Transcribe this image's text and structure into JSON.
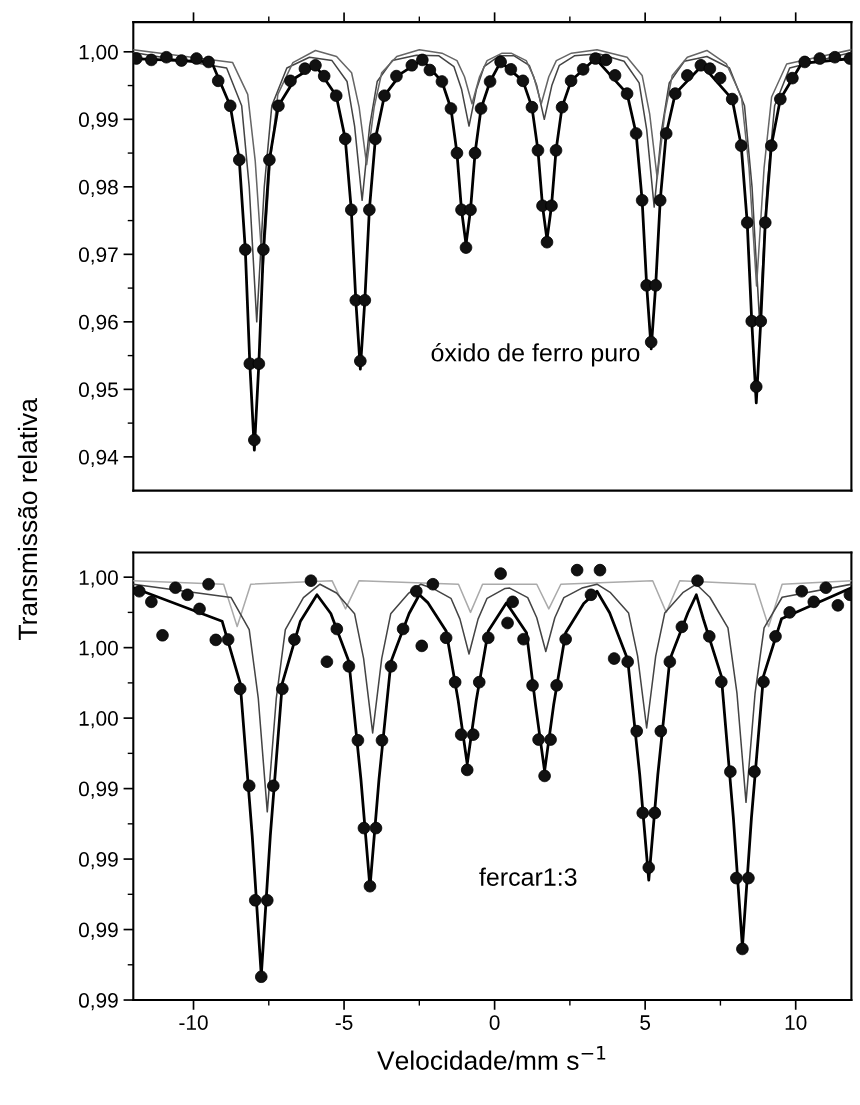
{
  "chart_data": [
    {
      "type": "line",
      "ylabel": "Transmissão relativa",
      "annotations": [
        "óxido de ferro puro"
      ],
      "line_style": "solid",
      "grid": false,
      "legend": false,
      "tick_labels": "y",
      "xlim": [
        -12.0,
        11.85
      ],
      "xticks": [
        -10,
        {
          "value": -7.5,
          "label": null
        },
        -5,
        {
          "value": -2.5,
          "label": null
        },
        0,
        {
          "value": 2.5,
          "label": null
        },
        5,
        {
          "value": 7.5,
          "label": null
        },
        10
      ],
      "ylim": [
        0.935,
        1.0044
      ],
      "yticks": [
        {
          "value": 0.94,
          "label": "0,94"
        },
        {
          "value": 0.945,
          "label": null
        },
        {
          "value": 0.95,
          "label": "0,95"
        },
        {
          "value": 0.955,
          "label": null
        },
        {
          "value": 0.96,
          "label": "0,96"
        },
        {
          "value": 0.965,
          "label": null
        },
        {
          "value": 0.97,
          "label": "0,97"
        },
        {
          "value": 0.975,
          "label": null
        },
        {
          "value": 0.98,
          "label": "0,98"
        },
        {
          "value": 0.985,
          "label": null
        },
        {
          "value": 0.99,
          "label": "0,99"
        },
        {
          "value": 0.995,
          "label": null
        },
        {
          "value": 1.0,
          "label": "1,00"
        }
      ],
      "series": [
        {
          "color": "#444444",
          "x": [
            -12,
            -8.9,
            -8.4,
            -8.15,
            -7.9,
            -7.65,
            -7.4,
            -6.9,
            -6.15,
            -5.4,
            -4.9,
            -4.65,
            -4.4,
            -4.15,
            -3.9,
            -3.4,
            -2.6,
            -1.85,
            -1.35,
            -1.1,
            -0.85,
            -0.6,
            -0.35,
            0.15,
            0.65,
            1.15,
            1.4,
            1.65,
            1.9,
            2.15,
            2.65,
            3.45,
            4.3,
            4.8,
            5.05,
            5.3,
            5.55,
            5.8,
            6.3,
            7.05,
            7.8,
            8.3,
            8.55,
            8.8,
            9.05,
            9.3,
            9.8,
            11.85
          ],
          "values": [
            0.9999,
            0.9976,
            0.992,
            0.98,
            0.96,
            0.98,
            0.992,
            0.9976,
            0.9992,
            0.9987,
            0.9956,
            0.989,
            0.978,
            0.989,
            0.9956,
            0.9987,
            0.9995,
            0.9994,
            0.9978,
            0.9945,
            0.989,
            0.9945,
            0.9978,
            0.9994,
            0.9994,
            0.998,
            0.995,
            0.99,
            0.995,
            0.998,
            0.9994,
            0.9997,
            0.9986,
            0.9954,
            0.9885,
            0.977,
            0.9885,
            0.9954,
            0.9986,
            0.9993,
            0.9976,
            0.992,
            0.98,
            0.96,
            0.98,
            0.992,
            0.9976,
            0.9999
          ]
        },
        {
          "color": "#666666",
          "x": [
            -12,
            -8.7,
            -8.2,
            -7.95,
            -7.7,
            -7.45,
            -7.2,
            -6.7,
            -5.95,
            -5.25,
            -4.75,
            -4.5,
            -4.25,
            -4.0,
            -3.75,
            -3.25,
            -2.5,
            -1.75,
            -1.25,
            -1.0,
            -0.75,
            -0.5,
            -0.25,
            0.25,
            0.55,
            1.05,
            1.3,
            1.55,
            1.8,
            2.05,
            2.55,
            3.4,
            4.4,
            4.9,
            5.15,
            5.4,
            5.65,
            5.9,
            6.4,
            7.05,
            7.7,
            8.2,
            8.45,
            8.7,
            8.95,
            9.2,
            9.7,
            11.85
          ],
          "values": [
            1.0003,
            0.9984,
            0.9937,
            0.9838,
            0.9673,
            0.9838,
            0.9937,
            0.9984,
            1.0002,
            0.9993,
            0.9969,
            0.9918,
            0.9833,
            0.9918,
            0.9969,
            0.9993,
            1.0003,
            0.9998,
            0.9987,
            0.9963,
            0.9923,
            0.9963,
            0.9987,
            0.9998,
            0.9998,
            0.9987,
            0.9963,
            0.9923,
            0.9963,
            0.9987,
            0.9998,
            1.0003,
            0.9992,
            0.9965,
            0.9908,
            0.9813,
            0.9908,
            0.9965,
            0.9992,
            1.0002,
            0.9982,
            0.9933,
            0.9828,
            0.9653,
            0.9828,
            0.9933,
            0.9982,
            1.0003
          ]
        },
        {
          "color": "#000000",
          "x": [
            -12,
            -9.4,
            -8.78,
            -8.48,
            -8.28,
            -8.13,
            -7.98,
            -7.83,
            -7.68,
            -7.48,
            -7.18,
            -6.6,
            -5.95,
            -5.26,
            -4.96,
            -4.76,
            -4.61,
            -4.46,
            -4.31,
            -4.16,
            -3.96,
            -3.66,
            -3.1,
            -2.4,
            -1.75,
            -1.45,
            -1.25,
            -1.1,
            -0.95,
            -0.8,
            -0.65,
            -0.45,
            -0.15,
            0.2,
            0.94,
            1.24,
            1.44,
            1.59,
            1.74,
            1.89,
            2.04,
            2.24,
            2.54,
            3.35,
            4.4,
            4.7,
            4.9,
            5.05,
            5.2,
            5.35,
            5.5,
            5.7,
            6.0,
            6.9,
            7.89,
            8.19,
            8.39,
            8.54,
            8.69,
            8.84,
            8.99,
            9.19,
            9.49,
            10.2,
            11.85
          ],
          "values": [
            0.999,
            0.9985,
            0.992,
            0.984,
            0.9707,
            0.9538,
            0.941,
            0.9538,
            0.9707,
            0.984,
            0.992,
            0.9962,
            0.998,
            0.9935,
            0.9871,
            0.9766,
            0.9632,
            0.953,
            0.9632,
            0.9766,
            0.9871,
            0.9935,
            0.9968,
            0.9988,
            0.9956,
            0.9916,
            0.985,
            0.9766,
            0.9715,
            0.9766,
            0.985,
            0.9916,
            0.9956,
            0.9985,
            0.9957,
            0.9918,
            0.9854,
            0.9772,
            0.9722,
            0.9772,
            0.9854,
            0.9918,
            0.9957,
            0.999,
            0.9938,
            0.9879,
            0.978,
            0.9654,
            0.956,
            0.9654,
            0.978,
            0.9879,
            0.9938,
            0.998,
            0.993,
            0.9861,
            0.9747,
            0.9601,
            0.948,
            0.9601,
            0.9747,
            0.9861,
            0.993,
            0.9983,
            0.999
          ]
        },
        {
          "type": "scatter",
          "marker": "circle",
          "color": "#111111",
          "x": [
            -11.9,
            -11.4,
            -10.9,
            -10.4,
            -9.9,
            -9.5,
            -9.18,
            -8.78,
            -8.48,
            -8.28,
            -8.13,
            -7.98,
            -7.83,
            -7.68,
            -7.48,
            -7.18,
            -6.78,
            -6.3,
            -5.95,
            -5.66,
            -5.26,
            -4.96,
            -4.76,
            -4.61,
            -4.46,
            -4.31,
            -4.16,
            -3.96,
            -3.66,
            -3.26,
            -2.75,
            -2.4,
            -2.15,
            -1.75,
            -1.45,
            -1.25,
            -1.1,
            -0.95,
            -0.8,
            -0.65,
            -0.45,
            -0.15,
            0.2,
            0.54,
            0.94,
            1.24,
            1.44,
            1.59,
            1.74,
            1.89,
            2.04,
            2.24,
            2.54,
            2.94,
            3.35,
            3.7,
            4.0,
            4.4,
            4.7,
            4.9,
            5.05,
            5.2,
            5.35,
            5.5,
            5.7,
            6.0,
            6.4,
            6.85,
            7.15,
            7.49,
            7.89,
            8.19,
            8.39,
            8.54,
            8.69,
            8.84,
            8.99,
            9.19,
            9.49,
            9.89,
            10.3,
            10.8,
            11.3,
            11.8
          ],
          "values": [
            0.999,
            0.9988,
            0.9992,
            0.9987,
            0.999,
            0.9985,
            0.9957,
            0.992,
            0.984,
            0.9707,
            0.9538,
            0.9425,
            0.9538,
            0.9707,
            0.984,
            0.992,
            0.9957,
            0.9975,
            0.998,
            0.9964,
            0.9935,
            0.9871,
            0.9766,
            0.9632,
            0.9542,
            0.9632,
            0.9766,
            0.9871,
            0.9935,
            0.9964,
            0.998,
            0.9988,
            0.9973,
            0.9956,
            0.9916,
            0.985,
            0.9766,
            0.971,
            0.9766,
            0.985,
            0.9916,
            0.9956,
            0.9985,
            0.9974,
            0.9957,
            0.9918,
            0.9854,
            0.9772,
            0.9718,
            0.9772,
            0.9854,
            0.9918,
            0.9957,
            0.9974,
            0.999,
            0.9988,
            0.9965,
            0.9938,
            0.9879,
            0.978,
            0.9654,
            0.957,
            0.9654,
            0.978,
            0.9879,
            0.9938,
            0.9965,
            0.998,
            0.9975,
            0.9961,
            0.993,
            0.9861,
            0.9747,
            0.9601,
            0.9504,
            0.9601,
            0.9747,
            0.9861,
            0.993,
            0.9961,
            0.9985,
            0.999,
            0.9992,
            0.999
          ]
        }
      ]
    },
    {
      "type": "line",
      "xlabel": "Velocidade/mm s$^{−1}$",
      "annotations": [
        "fercar1:3"
      ],
      "line_style": "solid",
      "grid": false,
      "legend": false,
      "xlim": [
        -12.0,
        11.85
      ],
      "xticks": [
        -10,
        {
          "value": -7.5,
          "label": null
        },
        -5,
        {
          "value": -2.5,
          "label": null
        },
        0,
        {
          "value": 2.5,
          "label": null
        },
        5,
        {
          "value": 7.5,
          "label": null
        },
        10
      ],
      "ylim": [
        0.988,
        1.0007
      ],
      "yticks": [
        {
          "value": 0.988,
          "label": "0,99"
        },
        {
          "value": 0.989,
          "label": null
        },
        {
          "value": 0.99,
          "label": "0,99"
        },
        {
          "value": 0.991,
          "label": null
        },
        {
          "value": 0.992,
          "label": "0,99"
        },
        {
          "value": 0.993,
          "label": null
        },
        {
          "value": 0.994,
          "label": "0,99"
        },
        {
          "value": 0.995,
          "label": null
        },
        {
          "value": 0.996,
          "label": "1,00"
        },
        {
          "value": 0.997,
          "label": null
        },
        {
          "value": 0.998,
          "label": "1,00"
        },
        {
          "value": 0.999,
          "label": null
        },
        {
          "value": 1.0,
          "label": "1,00"
        }
      ],
      "series": [
        {
          "color": "#aaaaaa",
          "x": [
            -12,
            -9.0,
            -8.55,
            -8.1,
            -5.4,
            -4.95,
            -4.5,
            -1.2,
            -0.8,
            -0.4,
            1.4,
            1.8,
            2.2,
            5.25,
            5.7,
            6.15,
            8.65,
            9.1,
            9.55,
            11.85
          ],
          "values": [
            0.9999,
            0.9998,
            0.9986,
            0.9998,
            0.9999,
            0.9991,
            0.9999,
            0.9998,
            0.999,
            0.9998,
            0.9998,
            0.9991,
            0.9998,
            0.9999,
            0.999,
            0.9999,
            0.9998,
            0.9986,
            0.9998,
            0.9999
          ]
        },
        {
          "color": "#444444",
          "x": [
            -12,
            -8.75,
            -8.15,
            -7.85,
            -7.55,
            -7.25,
            -6.95,
            -6.35,
            -5.8,
            -5.25,
            -4.65,
            -4.35,
            -4.05,
            -3.75,
            -3.45,
            -2.85,
            -2.45,
            -2.05,
            -1.45,
            -1.15,
            -0.85,
            -0.55,
            -0.25,
            0.35,
            0.5,
            1.1,
            1.4,
            1.7,
            2.0,
            2.3,
            2.9,
            3.4,
            3.85,
            4.45,
            4.75,
            5.05,
            5.35,
            5.65,
            6.25,
            6.7,
            7.15,
            7.75,
            8.05,
            8.35,
            8.65,
            8.95,
            9.55,
            11.85
          ],
          "values": [
            0.9998,
            0.99942,
            0.99851,
            0.99657,
            0.99334,
            0.99657,
            0.99851,
            0.99942,
            0.9998,
            0.99955,
            0.99896,
            0.99769,
            0.99558,
            0.99769,
            0.99896,
            0.99955,
            0.9998,
            0.99968,
            0.9994,
            0.99881,
            0.99782,
            0.99881,
            0.9994,
            0.99968,
            0.99969,
            0.99942,
            0.99885,
            0.99789,
            0.99885,
            0.99942,
            0.99969,
            0.9998,
            0.99956,
            0.99898,
            0.99776,
            0.99572,
            0.99776,
            0.99898,
            0.99956,
            0.9998,
            0.99943,
            0.99856,
            0.9967,
            0.99361,
            0.9967,
            0.99856,
            0.99943,
            0.9998
          ]
        },
        {
          "color": "#000000",
          "x": [
            -12,
            -9.05,
            -8.45,
            -8.05,
            -7.75,
            -7.45,
            -7.05,
            -6.45,
            -5.9,
            -5.44,
            -4.84,
            -4.44,
            -4.14,
            -3.84,
            -3.44,
            -2.84,
            -2.5,
            -2.21,
            -1.61,
            -1.21,
            -0.91,
            -0.61,
            -0.21,
            0.39,
            1.06,
            1.36,
            1.66,
            1.96,
            2.36,
            2.96,
            3.4,
            3.82,
            4.42,
            4.82,
            5.12,
            5.42,
            5.82,
            6.42,
            6.7,
            6.93,
            7.53,
            7.93,
            8.23,
            8.53,
            8.93,
            9.53,
            11.85
          ],
          "values": [
            0.9997,
            0.99875,
            0.99699,
            0.99266,
            0.9887,
            0.99266,
            0.99699,
            0.99875,
            0.9995,
            0.99897,
            0.99761,
            0.99426,
            0.9912,
            0.99426,
            0.99761,
            0.99897,
            0.9995,
            0.99927,
            0.99847,
            0.9965,
            0.9947,
            0.9965,
            0.99847,
            0.99927,
            0.99842,
            0.99637,
            0.9945,
            0.99637,
            0.99842,
            0.99925,
            0.9996,
            0.99899,
            0.99766,
            0.99439,
            0.9914,
            0.99439,
            0.99766,
            0.99899,
            0.9995,
            0.99882,
            0.99719,
            0.99317,
            0.9895,
            0.99317,
            0.99719,
            0.99882,
            0.9997
          ]
        },
        {
          "type": "scatter",
          "marker": "circle",
          "color": "#111111",
          "x": [
            -11.8,
            -11.4,
            -11.03,
            -10.6,
            -10.2,
            -9.8,
            -9.5,
            -9.26,
            -8.85,
            -8.45,
            -8.15,
            -7.95,
            -7.75,
            -7.55,
            -7.35,
            -7.05,
            -6.65,
            -6.1,
            -5.57,
            -5.24,
            -4.84,
            -4.54,
            -4.34,
            -4.14,
            -3.94,
            -3.74,
            -3.44,
            -3.04,
            -2.6,
            -2.42,
            -2.05,
            -1.61,
            -1.31,
            -1.11,
            -0.91,
            -0.71,
            -0.51,
            -0.21,
            0.2,
            0.43,
            0.6,
            0.96,
            1.26,
            1.46,
            1.66,
            1.86,
            2.06,
            2.36,
            2.74,
            3.2,
            3.5,
            3.97,
            4.42,
            4.72,
            4.92,
            5.12,
            5.32,
            5.52,
            5.82,
            6.22,
            6.74,
            7.13,
            7.53,
            7.83,
            8.03,
            8.23,
            8.43,
            8.63,
            8.93,
            9.33,
            9.8,
            10.2,
            10.6,
            11.0,
            11.4,
            11.8
          ],
          "values": [
            0.9996,
            0.9993,
            0.99835,
            0.9997,
            0.9995,
            0.9991,
            0.9998,
            0.99822,
            0.99823,
            0.99683,
            0.99408,
            0.99083,
            0.98866,
            0.99083,
            0.99408,
            0.99683,
            0.99823,
            0.9999,
            0.9976,
            0.99853,
            0.99747,
            0.99537,
            0.99288,
            0.99123,
            0.99288,
            0.99537,
            0.99747,
            0.99853,
            0.9996,
            0.99805,
            0.9998,
            0.99828,
            0.99702,
            0.99553,
            0.99453,
            0.99553,
            0.99702,
            0.99828,
            1.0001,
            0.9987,
            0.9993,
            0.99824,
            0.99693,
            0.99539,
            0.99436,
            0.99539,
            0.99693,
            0.99824,
            1.0002,
            0.9995,
            1.0002,
            0.99769,
            0.9976,
            0.99563,
            0.99331,
            0.99176,
            0.99331,
            0.99563,
            0.9976,
            0.99859,
            0.9999,
            0.99832,
            0.99703,
            0.99448,
            0.99146,
            0.98945,
            0.99146,
            0.99448,
            0.99703,
            0.99832,
            0.999,
            0.9996,
            0.9993,
            0.9997,
            0.9992,
            0.9995
          ]
        }
      ]
    }
  ]
}
